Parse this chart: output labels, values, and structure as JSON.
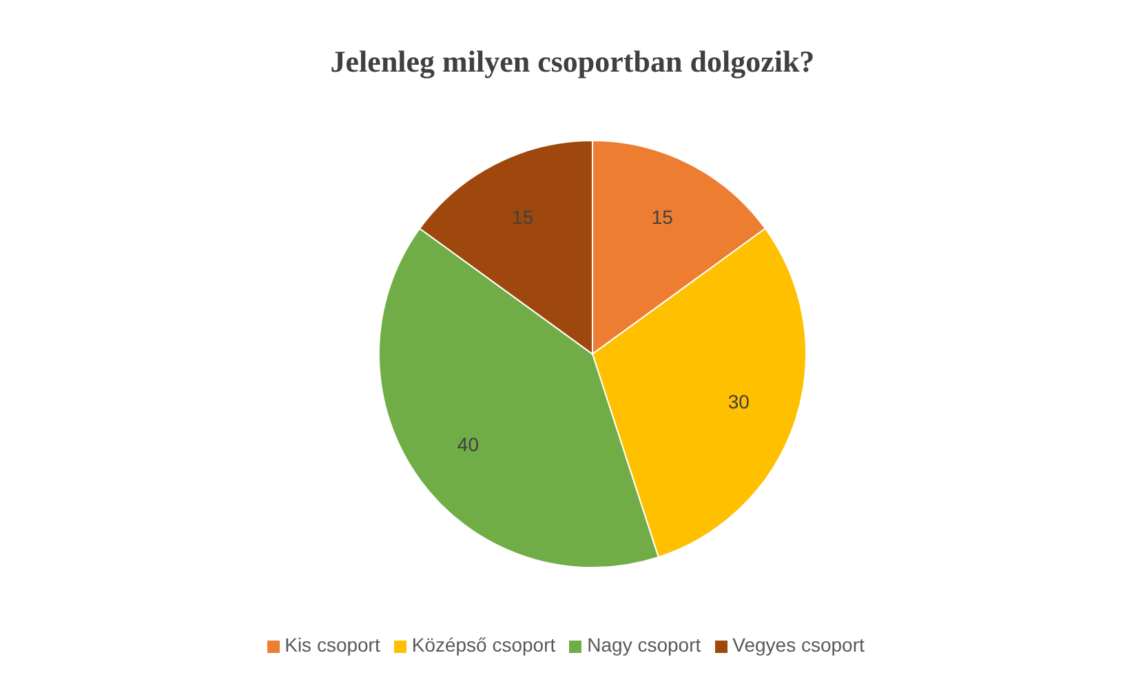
{
  "chart_data": {
    "type": "pie",
    "title": "Jelenleg milyen csoportban dolgozik?",
    "categories": [
      "Kis csoport",
      "Középső csoport",
      "Nagy csoport",
      "Vegyes csoport"
    ],
    "values": [
      15,
      30,
      40,
      15
    ],
    "colors": [
      "#ed7d31",
      "#ffc000",
      "#70ad47",
      "#9e480e"
    ],
    "data_labels": true,
    "legend": "bottom"
  }
}
